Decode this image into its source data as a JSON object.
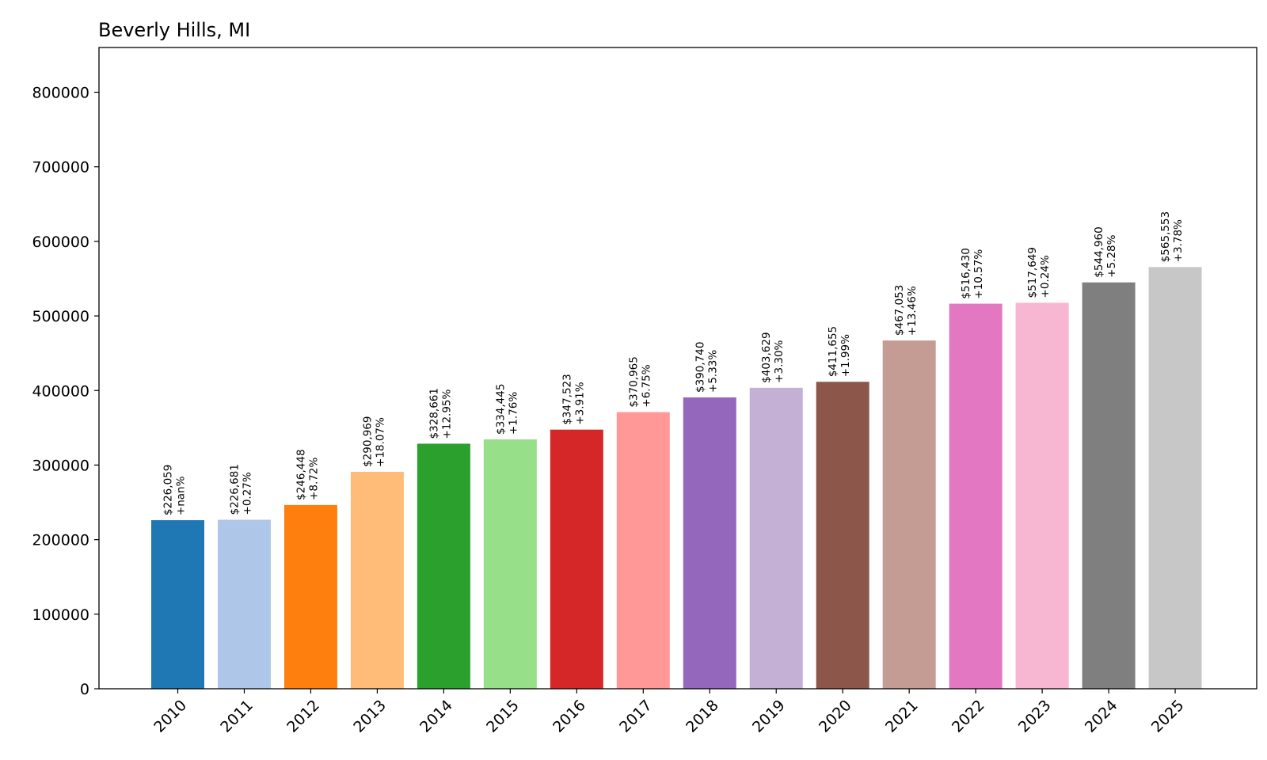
{
  "chart_data": {
    "type": "bar",
    "title": "Beverly Hills, MI",
    "xlabel": "",
    "ylabel": "",
    "ylim": [
      0,
      860000
    ],
    "yticks": [
      0,
      100000,
      200000,
      300000,
      400000,
      500000,
      600000,
      700000,
      800000
    ],
    "ytick_labels": [
      "0",
      "100000",
      "200000",
      "300000",
      "400000",
      "500000",
      "600000",
      "700000",
      "800000"
    ],
    "grid": false,
    "categories": [
      "2010",
      "2011",
      "2012",
      "2013",
      "2014",
      "2015",
      "2016",
      "2017",
      "2018",
      "2019",
      "2020",
      "2021",
      "2022",
      "2023",
      "2024",
      "2025"
    ],
    "values": [
      226059,
      226681,
      246448,
      290969,
      328661,
      334445,
      347523,
      370965,
      390740,
      403629,
      411655,
      467053,
      516430,
      517649,
      544960,
      565553
    ],
    "value_labels": [
      "$226,059",
      "$226,681",
      "$246,448",
      "$290,969",
      "$328,661",
      "$334,445",
      "$347,523",
      "$370,965",
      "$390,740",
      "$403,629",
      "$411,655",
      "$467,053",
      "$516,430",
      "$517,649",
      "$544,960",
      "$565,553"
    ],
    "change_labels": [
      "+nan%",
      "+0.27%",
      "+8.72%",
      "+18.07%",
      "+12.95%",
      "+1.76%",
      "+3.91%",
      "+6.75%",
      "+5.33%",
      "+3.30%",
      "+1.99%",
      "+13.46%",
      "+10.57%",
      "+0.24%",
      "+5.28%",
      "+3.78%"
    ],
    "colors": [
      "#1f77b4",
      "#aec7e8",
      "#ff7f0e",
      "#ffbb78",
      "#2ca02c",
      "#98df8a",
      "#d62728",
      "#ff9896",
      "#9467bd",
      "#c5b0d5",
      "#8c564b",
      "#c49c94",
      "#e377c2",
      "#f7b6d2",
      "#7f7f7f",
      "#c7c7c7"
    ]
  }
}
